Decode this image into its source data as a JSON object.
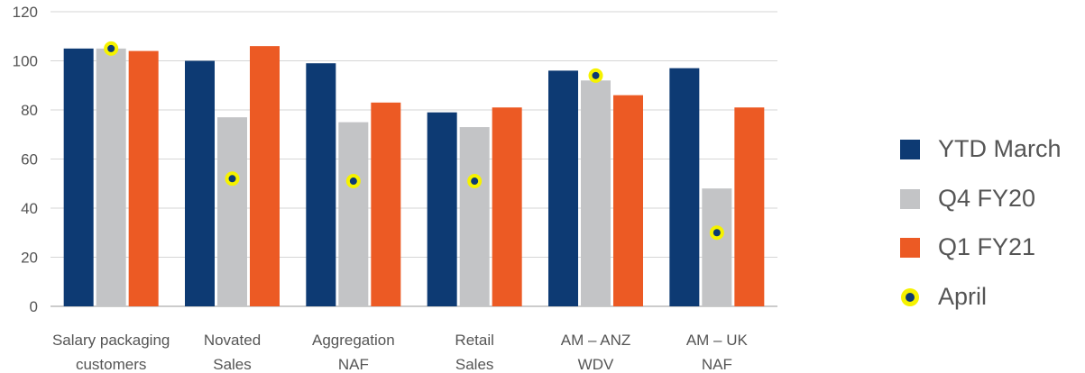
{
  "chart_data": {
    "type": "bar",
    "categories": [
      [
        "Salary packaging",
        "customers"
      ],
      [
        "Novated",
        "Sales"
      ],
      [
        "Aggregation",
        "NAF"
      ],
      [
        "Retail",
        "Sales"
      ],
      [
        "AM – ANZ",
        "WDV"
      ],
      [
        "AM – UK",
        "NAF"
      ]
    ],
    "series": [
      {
        "name": "YTD March",
        "color": "#0d3a73",
        "values": [
          105,
          100,
          99,
          79,
          96,
          97
        ]
      },
      {
        "name": "Q4 FY20",
        "color": "#c3c4c6",
        "values": [
          105,
          77,
          75,
          73,
          92,
          48
        ]
      },
      {
        "name": "Q1 FY21",
        "color": "#ec5a24",
        "values": [
          104,
          106,
          83,
          81,
          86,
          81
        ]
      }
    ],
    "markers": {
      "name": "April",
      "fill": "#0d3a73",
      "ring": "#f5f200",
      "values": [
        105,
        52,
        51,
        51,
        94,
        30
      ]
    },
    "yticks": [
      0,
      20,
      40,
      60,
      80,
      100,
      120
    ],
    "ylim": [
      0,
      120
    ],
    "grid": true,
    "legend_position": "right",
    "title": "",
    "xlabel": "",
    "ylabel": ""
  }
}
